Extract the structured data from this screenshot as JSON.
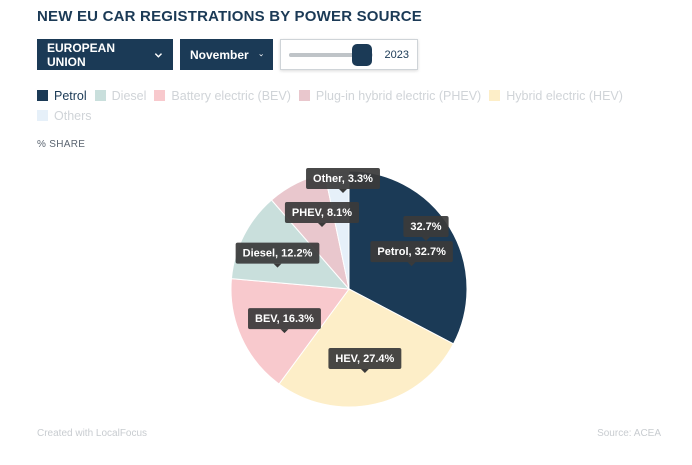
{
  "title": "NEW EU CAR REGISTRATIONS BY POWER SOURCE",
  "controls": {
    "region": "EUROPEAN UNION",
    "month": "November",
    "year": "2023",
    "year_fraction": 0.87
  },
  "legend": [
    {
      "label": "Petrol",
      "color": "#1b3a56",
      "active": true
    },
    {
      "label": "Diesel",
      "color": "#c9dfdc",
      "active": false
    },
    {
      "label": "Battery electric (BEV)",
      "color": "#f8c9cd",
      "active": false
    },
    {
      "label": "Plug-in hybrid electric (PHEV)",
      "color": "#e9c7cd",
      "active": false
    },
    {
      "label": "Hybrid electric (HEV)",
      "color": "#fdeec8",
      "active": false
    },
    {
      "label": "Others",
      "color": "#e6f0f9",
      "active": false
    }
  ],
  "unit_label": "% SHARE",
  "chart_data": {
    "type": "pie",
    "slices": [
      {
        "label": "Petrol",
        "value": 32.7,
        "color": "#1b3a56",
        "tooltip": "Petrol, 32.7%"
      },
      {
        "label": "HEV",
        "value": 27.4,
        "color": "#fdeec8",
        "tooltip": "HEV, 27.4%"
      },
      {
        "label": "BEV",
        "value": 16.3,
        "color": "#f8c9cd",
        "tooltip": "BEV, 16.3%"
      },
      {
        "label": "Diesel",
        "value": 12.2,
        "color": "#c9dfdc",
        "tooltip": "Diesel, 12.2%"
      },
      {
        "label": "PHEV",
        "value": 8.1,
        "color": "#e9c7cd",
        "tooltip": "PHEV, 8.1%"
      },
      {
        "label": "Other",
        "value": 3.3,
        "color": "#e6f0f9",
        "tooltip": "Other, 3.3%"
      }
    ],
    "hover_value": "32.7%"
  },
  "footer": {
    "credit": "Created with LocalFocus",
    "source": "Source: ACEA"
  }
}
